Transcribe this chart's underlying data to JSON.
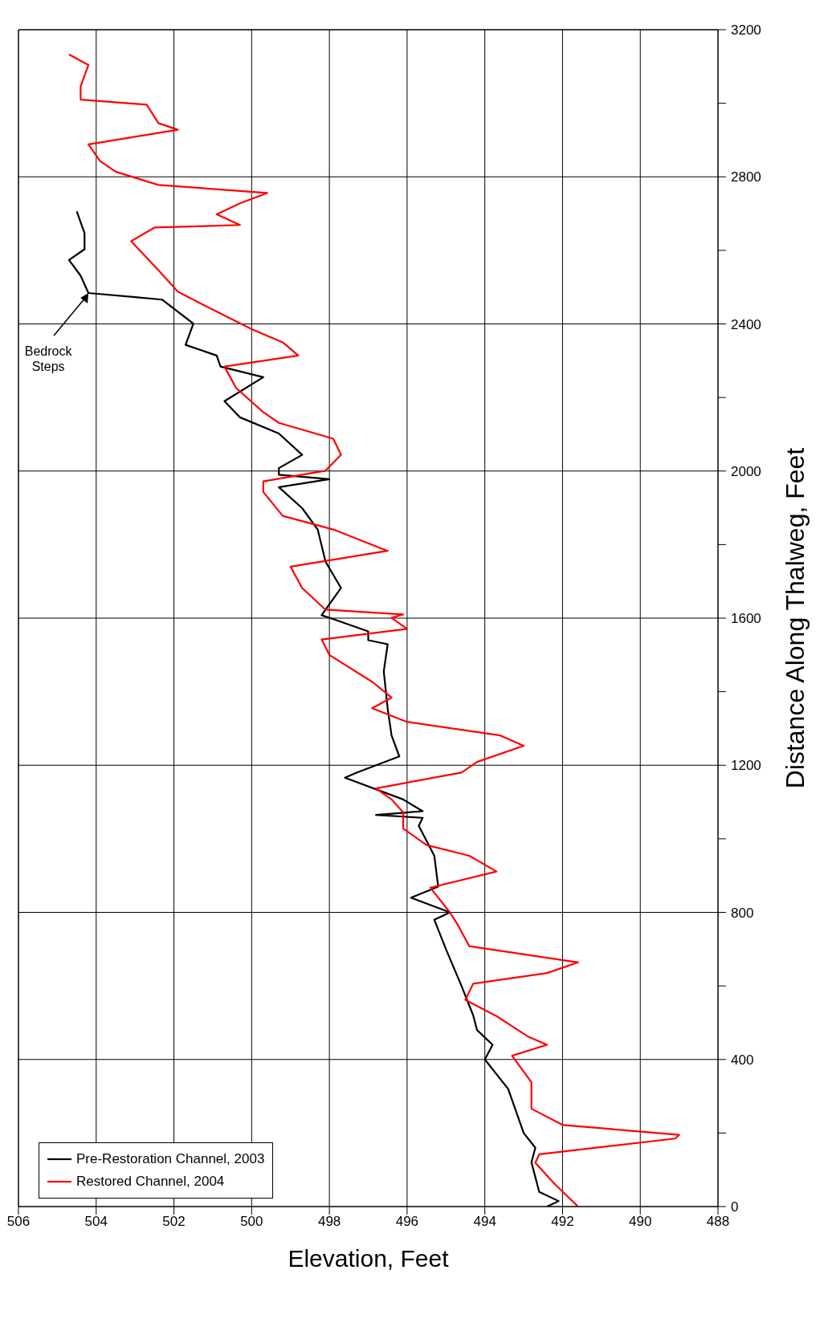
{
  "chart_data": {
    "type": "line",
    "orientation": "horizontal",
    "ylabel": "Distance Along Thalweg, Feet",
    "xlabel": "Elevation, Feet",
    "ylim": [
      0,
      3200
    ],
    "yticks": [
      0,
      {
        "value": 200,
        "label": null
      },
      400,
      {
        "value": 600,
        "label": null
      },
      800,
      {
        "value": 1000,
        "label": null
      },
      1200,
      {
        "value": 1400,
        "label": null
      },
      1600,
      {
        "value": 1800,
        "label": null
      },
      2000,
      {
        "value": 2200,
        "label": null
      },
      2400,
      {
        "value": 2600,
        "label": null
      },
      2800,
      {
        "value": 3000,
        "label": null
      },
      3200
    ],
    "xlim": [
      506,
      488
    ],
    "xticks": [
      506,
      504,
      502,
      500,
      498,
      496,
      494,
      492,
      490,
      488
    ],
    "grid": true,
    "legend": "bottom left",
    "marker": "none",
    "line_style": "solid",
    "annotations": [
      {
        "text": "Bedrock Steps",
        "x": 504.2,
        "y": 2484
      }
    ],
    "series": [
      {
        "name": "Pre-Restoration Channel, 2003",
        "color": "#000000",
        "x": [
          0,
          15,
          40,
          80,
          120,
          160,
          200,
          260,
          320,
          400,
          440,
          480,
          520,
          600,
          700,
          780,
          800,
          840,
          870,
          954,
          1035,
          1057,
          1065,
          1075,
          1107,
          1166,
          1180,
          1224,
          1281,
          1354,
          1455,
          1529,
          1540,
          1564,
          1601,
          1608,
          1682,
          1754,
          1841,
          1899,
          1956,
          1978,
          1990,
          2008,
          2044,
          2102,
          2146,
          2190,
          2255,
          2284,
          2314,
          2343,
          2401,
          2466,
          2473,
          2484,
          2531,
          2574,
          2603,
          2647,
          2706
        ],
        "values": [
          492.4,
          492.1,
          492.6,
          492.7,
          492.8,
          492.7,
          493.0,
          493.2,
          493.4,
          494.0,
          493.8,
          494.2,
          494.3,
          494.6,
          495.0,
          495.3,
          494.9,
          495.9,
          495.2,
          495.3,
          495.7,
          495.6,
          496.8,
          495.6,
          496.1,
          497.6,
          497.3,
          496.2,
          496.4,
          496.5,
          496.6,
          496.5,
          497.0,
          497.0,
          498.0,
          498.2,
          497.7,
          498.1,
          498.3,
          498.7,
          499.3,
          498.0,
          499.3,
          499.3,
          498.7,
          499.3,
          500.3,
          500.7,
          499.7,
          500.8,
          500.9,
          501.7,
          501.5,
          502.3,
          503.0,
          504.2,
          504.4,
          504.7,
          504.3,
          504.3,
          504.5
        ]
      },
      {
        "name": "Restored Channel, 2004",
        "color": "#ff0000",
        "x": [
          0,
          61,
          119,
          142,
          185,
          195,
          222,
          266,
          338,
          410,
          440,
          463,
          518,
          562,
          606,
          635,
          664,
          708,
          767,
          800,
          867,
          911,
          954,
          983,
          1028,
          1072,
          1107,
          1137,
          1180,
          1209,
          1253,
          1281,
          1318,
          1355,
          1384,
          1427,
          1500,
          1542,
          1571,
          1601,
          1610,
          1623,
          1682,
          1740,
          1783,
          1841,
          1878,
          1943,
          1972,
          2001,
          2044,
          2088,
          2131,
          2160,
          2226,
          2284,
          2314,
          2350,
          2386,
          2444,
          2488,
          2546,
          2625,
          2662,
          2669,
          2698,
          2728,
          2756,
          2778,
          2814,
          2843,
          2888,
          2928,
          2946,
          2996,
          3010,
          3046,
          3104,
          3133
        ],
        "values": [
          491.6,
          492.2,
          492.7,
          492.6,
          489.1,
          489.0,
          492.0,
          492.8,
          492.8,
          493.3,
          492.4,
          492.9,
          493.7,
          494.5,
          494.3,
          492.4,
          491.6,
          494.4,
          494.7,
          494.9,
          495.4,
          493.7,
          494.4,
          495.5,
          496.1,
          496.1,
          496.4,
          496.8,
          494.6,
          494.2,
          493.0,
          493.6,
          496.0,
          496.9,
          496.4,
          496.9,
          498.0,
          498.2,
          496.0,
          496.4,
          496.1,
          498.1,
          498.7,
          499.0,
          496.5,
          497.9,
          499.2,
          499.7,
          499.7,
          498.1,
          497.7,
          497.9,
          499.3,
          499.7,
          500.4,
          500.7,
          498.8,
          499.2,
          500.0,
          501.1,
          501.9,
          502.4,
          503.1,
          502.5,
          500.3,
          500.9,
          500.3,
          499.6,
          502.4,
          503.5,
          503.9,
          504.2,
          501.9,
          502.4,
          502.7,
          504.4,
          504.4,
          504.2,
          504.7
        ]
      }
    ]
  }
}
